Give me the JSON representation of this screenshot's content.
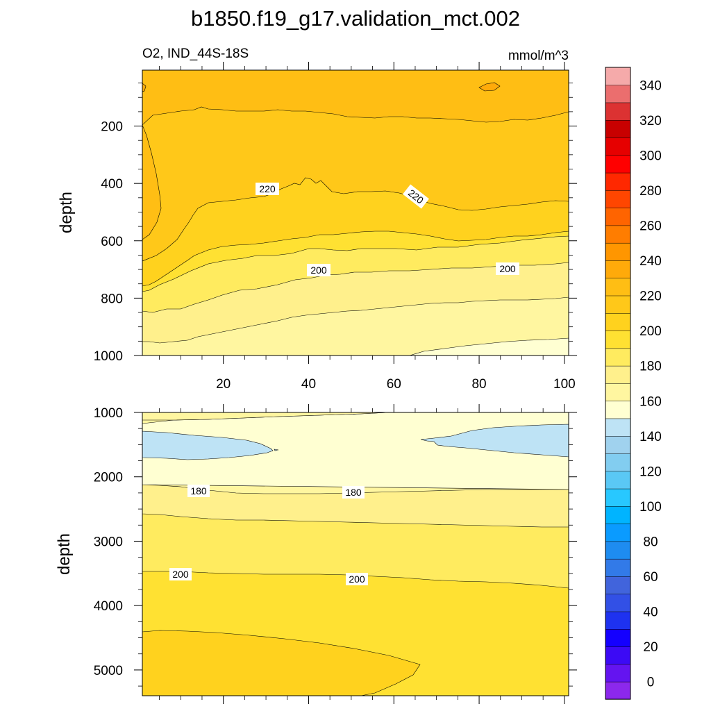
{
  "chart_data": {
    "type": "contour",
    "title": "b1850.f19_g17.validation_mct.002",
    "subtitle_left": "O2, IND_44S-18S",
    "subtitle_right": "mmol/m^3",
    "ylabel": "depth",
    "x_ticks": [
      "20",
      "40",
      "60",
      "80",
      "100"
    ],
    "upper_panel": {
      "xlim": [
        1,
        101
      ],
      "ylim": [
        1000,
        5
      ],
      "y_ticks": [
        "200",
        "400",
        "600",
        "800",
        "1000"
      ],
      "contour_labels": [
        "220",
        "220",
        "200",
        "200"
      ]
    },
    "lower_panel": {
      "xlim": [
        1,
        101
      ],
      "ylim": [
        5400,
        1000
      ],
      "y_ticks": [
        "1000",
        "2000",
        "3000",
        "4000",
        "5000"
      ],
      "contour_labels": [
        "180",
        "180",
        "200",
        "200"
      ]
    },
    "colorbar": {
      "levels": [
        0,
        10,
        20,
        30,
        40,
        50,
        60,
        70,
        80,
        90,
        100,
        110,
        120,
        130,
        140,
        150,
        160,
        170,
        180,
        190,
        200,
        210,
        220,
        230,
        240,
        250,
        260,
        270,
        280,
        290,
        300,
        310,
        320,
        330,
        340,
        350
      ],
      "tick_labels": [
        "0",
        "20",
        "40",
        "60",
        "80",
        "100",
        "120",
        "140",
        "160",
        "180",
        "200",
        "220",
        "240",
        "260",
        "280",
        "300",
        "320",
        "340"
      ],
      "colors": [
        "#8c28ec",
        "#6414f0",
        "#3c0af5",
        "#1400ff",
        "#1e32f0",
        "#3250e6",
        "#4164dc",
        "#327ae8",
        "#1e8cf0",
        "#0a9bff",
        "#00b4ff",
        "#28c8ff",
        "#5ac8f5",
        "#82cdf0",
        "#a0d2ee",
        "#bee3f5",
        "#ffffd2",
        "#fff6a0",
        "#fff08c",
        "#ffeb5f",
        "#ffe132",
        "#ffd21e",
        "#ffc819",
        "#ffbe14",
        "#ffaa0a",
        "#ff9600",
        "#ff7d00",
        "#ff6400",
        "#ff4600",
        "#ff2800",
        "#ff0000",
        "#e60000",
        "#c80000",
        "#dc3232",
        "#eb6e6e",
        "#f5aaaa"
      ]
    }
  }
}
